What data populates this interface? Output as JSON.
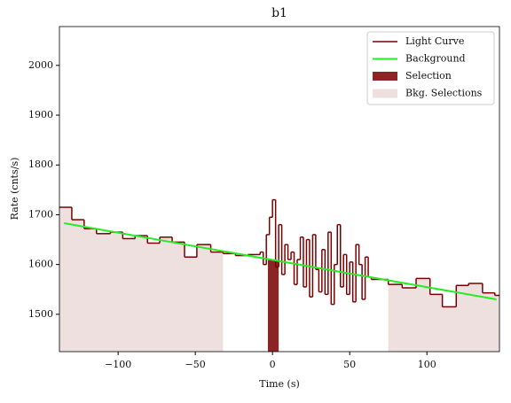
{
  "chart_data": {
    "type": "step",
    "title": "b1",
    "x_label": "Time (s)",
    "y_label": "Rate (cnts/s)",
    "xlim": [
      -138,
      147
    ],
    "ylim": [
      1425,
      2078
    ],
    "xticks": [
      {
        "value": -100,
        "label": "−100"
      },
      {
        "value": -50,
        "label": "−50"
      },
      0,
      50,
      100
    ],
    "yticks": [
      1500,
      1600,
      1700,
      1800,
      1900,
      2000
    ],
    "legend": "upper right",
    "light_curve": {
      "name": "Light Curve",
      "color": "#7a0000",
      "bins": [
        -138,
        -130,
        -122,
        -114,
        -105,
        -97,
        -89,
        -81,
        -73,
        -65,
        -57,
        -49,
        -40,
        -32,
        -24,
        -16,
        -8,
        -6,
        -4,
        -2,
        0,
        2,
        4,
        6,
        8,
        10,
        12,
        14,
        16,
        18,
        20,
        22,
        24,
        26,
        28,
        30,
        32,
        34,
        36,
        38,
        40,
        42,
        44,
        46,
        48,
        50,
        52,
        54,
        56,
        58,
        60,
        62,
        64,
        75,
        84,
        93,
        102,
        110,
        119,
        127,
        136,
        144,
        147
      ],
      "values": [
        1715,
        1690,
        1672,
        1662,
        1665,
        1652,
        1658,
        1643,
        1655,
        1645,
        1615,
        1640,
        1625,
        1622,
        1618,
        1620,
        1625,
        1600,
        1660,
        1695,
        1730,
        1595,
        1680,
        1580,
        1640,
        1610,
        1625,
        1560,
        1610,
        1655,
        1555,
        1650,
        1535,
        1660,
        1590,
        1545,
        1630,
        1540,
        1665,
        1520,
        1600,
        1680,
        1555,
        1620,
        1540,
        1605,
        1525,
        1640,
        1600,
        1530,
        1615,
        1575,
        1570,
        1560,
        1553,
        1572,
        1540,
        1515,
        1558,
        1562,
        1543,
        1538
      ]
    },
    "background": {
      "name": "Background",
      "color": "#22ee22",
      "x": [
        -135,
        145
      ],
      "values": [
        1683,
        1530
      ]
    },
    "selection": {
      "name": "Selection",
      "color": "#8b2525",
      "range": [
        -3,
        4
      ]
    },
    "bkg_selections": {
      "name": "Bkg. Selections",
      "color": "#efe0e0",
      "ranges": [
        [
          -138,
          -32
        ],
        [
          75,
          147
        ]
      ]
    }
  }
}
